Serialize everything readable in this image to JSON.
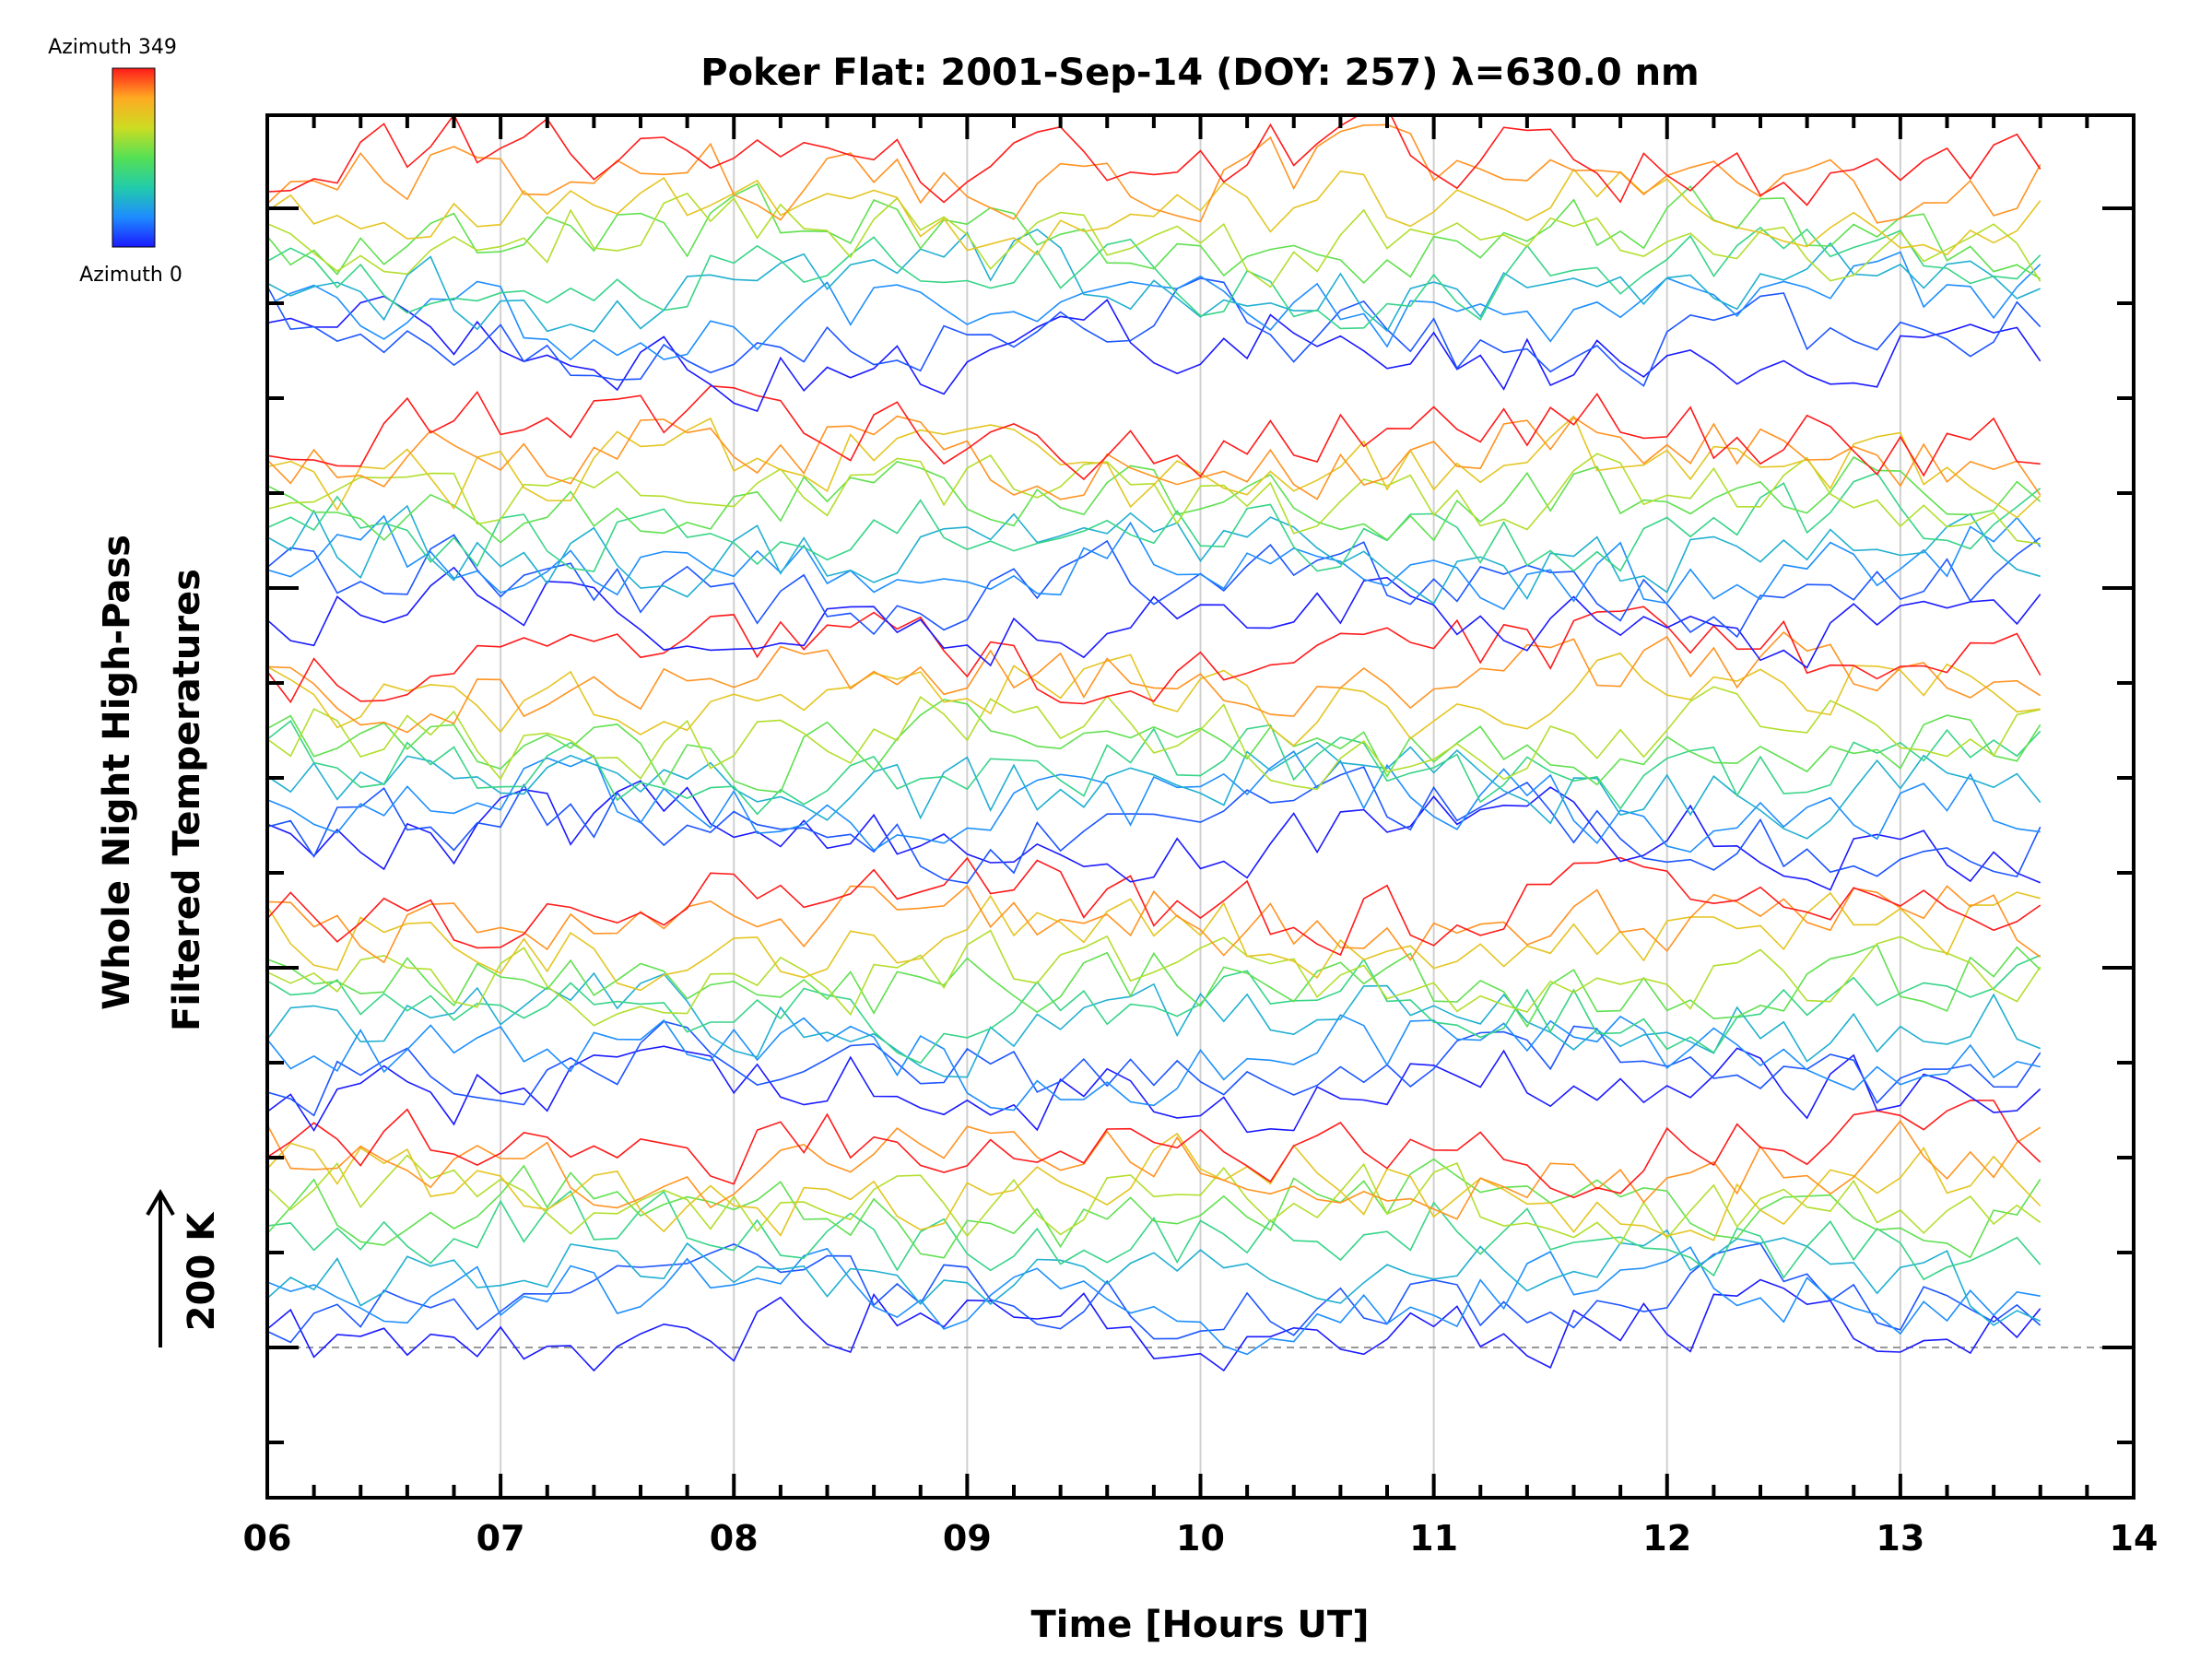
{
  "colors": {
    "colorbar_stops": [
      "#1a1aff",
      "#1e8cff",
      "#22ccaa",
      "#55e055",
      "#ccdd22",
      "#ffaa22",
      "#ff1a1a"
    ],
    "axis": "#000000",
    "grid": "#d0d0d0",
    "baseline": "#999999"
  },
  "chart_data": {
    "type": "line",
    "title": "Poker Flat: 2001-Sep-14 (DOY: 257) λ=630.0 nm",
    "xlabel": "Time [Hours UT]",
    "ylabel_line1": "Whole Night High-Pass",
    "ylabel_line2": "Filtered Temperatures",
    "scale_label": "200 K",
    "colorbar": {
      "top_label": "Azimuth 349",
      "bottom_label": "Azimuth 0"
    },
    "xlim": [
      6,
      14
    ],
    "x_ticks": [
      "06",
      "07",
      "08",
      "09",
      "10",
      "11",
      "12",
      "13",
      "14"
    ],
    "grid": "vertical lines at whole hours",
    "baseline_dashed_at_lowest_offset": true,
    "time_start_hours": 6.0,
    "time_end_hours": 13.6,
    "time_step_hours": 0.1,
    "series_groups": [
      {
        "count": 10,
        "azimuths": [
          0,
          30,
          60,
          90,
          140,
          180,
          220,
          260,
          300,
          349
        ],
        "level": 0
      },
      {
        "count": 10,
        "azimuths": [
          0,
          30,
          60,
          90,
          140,
          180,
          220,
          260,
          300,
          349
        ],
        "level": 1
      },
      {
        "count": 10,
        "azimuths": [
          0,
          30,
          60,
          90,
          140,
          180,
          220,
          260,
          300,
          349
        ],
        "level": 2
      },
      {
        "count": 10,
        "azimuths": [
          0,
          30,
          60,
          90,
          140,
          180,
          220,
          260,
          300,
          349
        ],
        "level": 3
      },
      {
        "count": 10,
        "azimuths": [
          0,
          30,
          60,
          90,
          140,
          180,
          220,
          260,
          300,
          349
        ],
        "level": 4
      }
    ]
  }
}
